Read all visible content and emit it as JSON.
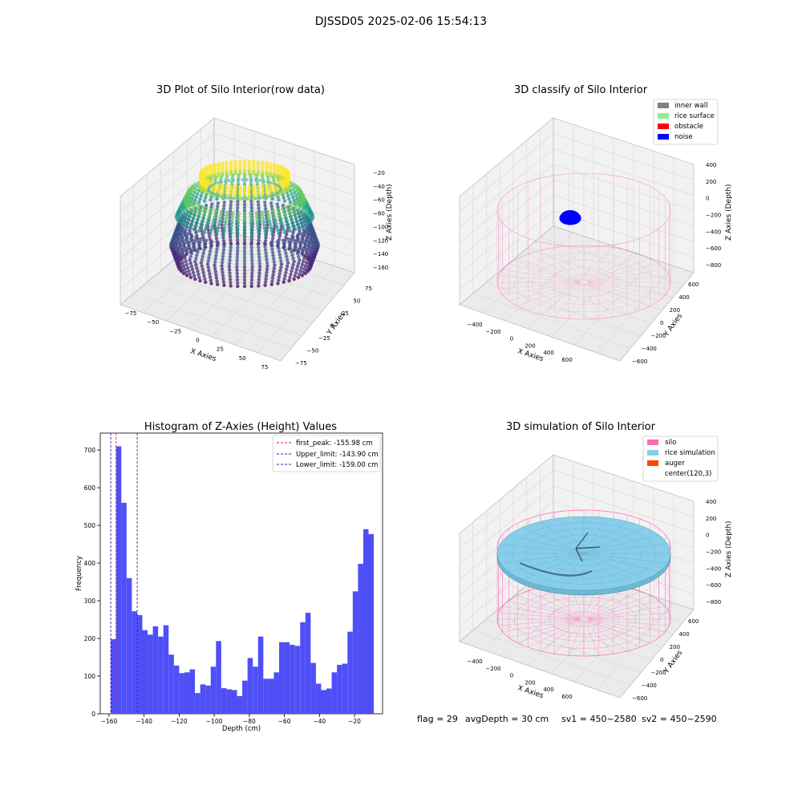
{
  "figure_title": "DJSSD05 2025-02-06 15:54:13",
  "footer": {
    "flag": "flag = 29",
    "avg_depth": "avgDepth = 30 cm",
    "sv1": "sv1 = 450~2580",
    "sv2": "sv2 = 450~2590"
  },
  "colors": {
    "histogram_bar": "#4f4ff8",
    "first_peak_line": "#e02020",
    "limit_line": "#1f1fcf",
    "inner_wall": "#808080",
    "rice_surface": "#90ee90",
    "obstacle": "#ff0000",
    "noise": "#0000ff",
    "silo": "#ff69b4",
    "rice_simulation": "#87ceeb",
    "auger": "#ff4500"
  },
  "chart_data": [
    {
      "type": "scatter",
      "title": "3D Plot of Silo Interior(row data)",
      "xlabel": "X Axies",
      "ylabel": "Y Axies",
      "zlabel": "Z Axies (Depth)",
      "xticks": [
        "−75",
        "−50",
        "−25",
        "0",
        "25",
        "50",
        "75"
      ],
      "yticks": [
        "−75",
        "−50",
        "−25",
        "0",
        "25",
        "50",
        "75"
      ],
      "zticks": [
        "−20",
        "−40",
        "−60",
        "−80",
        "−100",
        "−120",
        "−140",
        "−160"
      ],
      "xlim": [
        -90,
        90
      ],
      "ylim": [
        -90,
        90
      ],
      "zlim": [
        -170,
        -10
      ],
      "colormap": "viridis",
      "description_shape": "stacked point rings: upper ring near z=-20 (r≈55), mid ring z≈-60 (r≈80), lower bulge z≈-140 (r≈85)"
    },
    {
      "type": "scatter",
      "title": "3D classify of Silo Interior",
      "zlabel": "Z Axies (Depth)",
      "xlabel": "X Axies",
      "ylabel": "Y Axies",
      "xticks": [
        "−400",
        "−200",
        "0",
        "200",
        "400",
        "600"
      ],
      "yticks": [
        "−600",
        "−400",
        "−200",
        "0",
        "200",
        "400",
        "600"
      ],
      "zticks": [
        "400",
        "200",
        "0",
        "−200",
        "−400",
        "−600",
        "−800"
      ],
      "legend": [
        "inner wall",
        "rice surface",
        "obstacle",
        "noise"
      ],
      "legend_position": "top-right"
    },
    {
      "type": "bar",
      "title": "Histogram of Z-Axies (Height) Values",
      "xlabel": "Depth (cm)",
      "ylabel": "Frequency",
      "xlim": [
        -165,
        -4
      ],
      "ylim": [
        0,
        745
      ],
      "xticks": [
        -160,
        -140,
        -120,
        -100,
        -80,
        -60,
        -40,
        -20
      ],
      "yticks": [
        0,
        100,
        200,
        300,
        400,
        500,
        600,
        700
      ],
      "bin_start": -159.0,
      "bin_width": 3.0,
      "values": [
        198,
        710,
        560,
        360,
        272,
        262,
        222,
        210,
        232,
        205,
        235,
        157,
        128,
        108,
        110,
        118,
        55,
        78,
        75,
        125,
        193,
        68,
        65,
        63,
        47,
        88,
        148,
        125,
        205,
        93,
        93,
        110,
        190,
        190,
        183,
        180,
        243,
        268,
        135,
        80,
        63,
        67,
        110,
        130,
        133,
        218,
        325,
        398,
        490,
        477
      ],
      "vlines": [
        {
          "label": "first_peak: -155.98 cm",
          "x": -155.98,
          "color": "red"
        },
        {
          "label": "Upper_limit: -143.90 cm",
          "x": -143.9,
          "color": "blue"
        },
        {
          "label": "Lower_limit: -159.00 cm",
          "x": -159.0,
          "color": "blue"
        }
      ],
      "legend_position": "top-right"
    },
    {
      "type": "scatter",
      "title": "3D simulation of Silo Interior",
      "zlabel": "Z Axies (Depth)",
      "xlabel": "X Axies",
      "ylabel": "Y Axies",
      "xticks": [
        "−400",
        "−200",
        "0",
        "200",
        "400",
        "600"
      ],
      "yticks": [
        "−600",
        "−400",
        "−200",
        "0",
        "200",
        "400",
        "600"
      ],
      "zticks": [
        "400",
        "200",
        "0",
        "−200",
        "−400",
        "−600",
        "−800"
      ],
      "legend": [
        "silo",
        "rice simulation",
        "auger",
        "center(120,3)"
      ],
      "legend_position": "top-right"
    }
  ]
}
